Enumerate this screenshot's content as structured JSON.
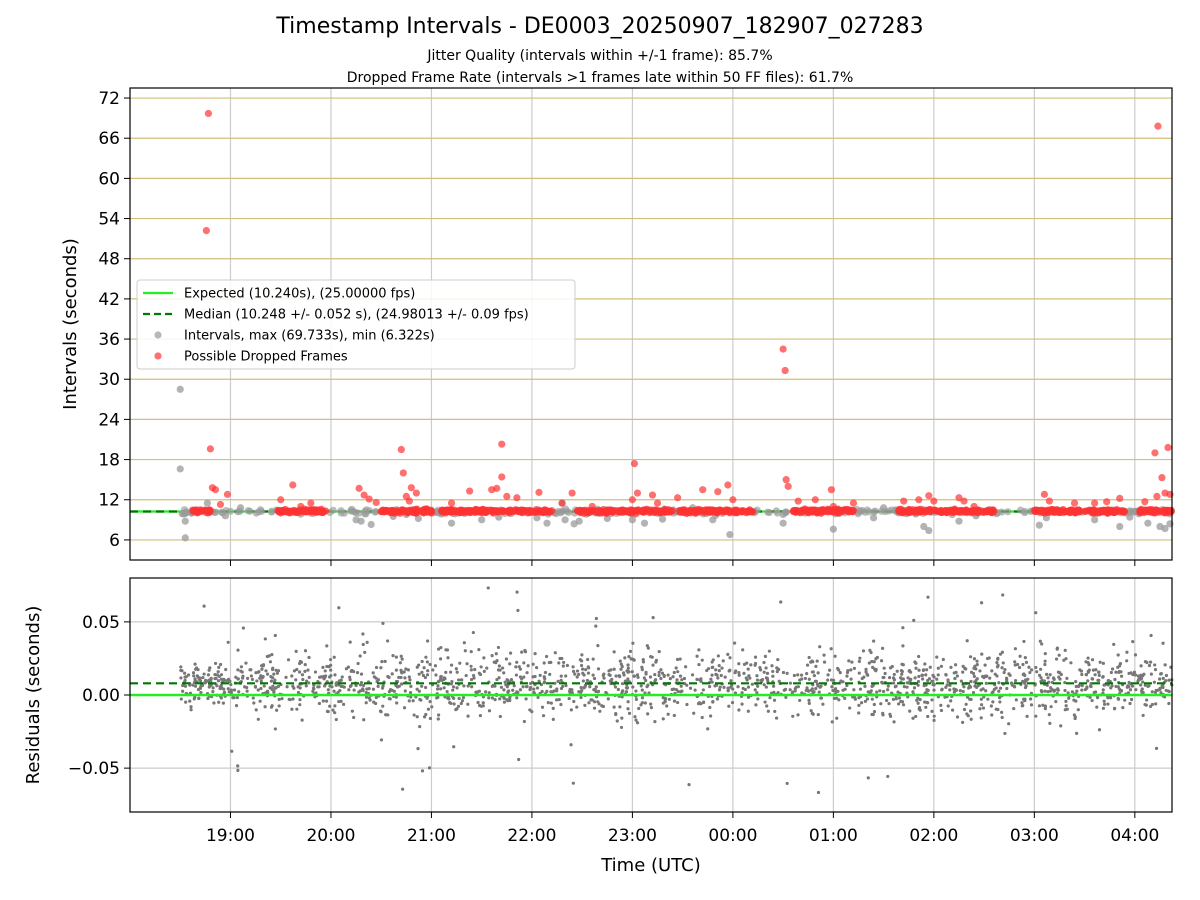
{
  "title": "Timestamp Intervals - DE0003_20250907_182907_027283",
  "subtitle_1": "Jitter Quality (intervals within +/-1 frame): 85.7%",
  "subtitle_2": "Dropped Frame Rate (intervals >1 frames late within 50 FF files): 61.7%",
  "colors": {
    "expected": "#22ee22",
    "median": "#007700",
    "interval_points": "#999999",
    "dropped_points": "#ff3333",
    "residual_points": "#777777",
    "top_grid": "#d2bf78",
    "vertical_grid": "#cccccc"
  },
  "chart_data": [
    {
      "type": "scatter",
      "panel": "intervals",
      "ylabel": "Intervals (seconds)",
      "xlabel": "",
      "x_unit": "hours since 00:00 UTC of Sept 7 (tick labels shown as clock time)",
      "xlim": [
        18.0,
        28.37
      ],
      "ylim": [
        3.0,
        73.5
      ],
      "yticks": [
        6,
        12,
        18,
        24,
        30,
        36,
        42,
        48,
        54,
        60,
        66,
        72
      ],
      "xtick_labels": [
        "19:00",
        "20:00",
        "21:00",
        "22:00",
        "23:00",
        "00:00",
        "01:00",
        "02:00",
        "03:00",
        "04:00"
      ],
      "xtick_values": [
        19,
        20,
        21,
        22,
        23,
        24,
        25,
        26,
        27,
        28
      ],
      "grid": true,
      "legend_placement": "center-left",
      "series": [
        {
          "name": "Expected (10.240s), (25.00000 fps)",
          "kind": "hline",
          "y": 10.24,
          "style": "solid"
        },
        {
          "name": "Median (10.248 +/- 0.052 s), (24.98013 +/- 0.09 fps)",
          "kind": "hline",
          "y": 10.248,
          "style": "dashed"
        },
        {
          "name": "Intervals, max (69.733s), min (6.322s)",
          "kind": "scatter",
          "points": [
            [
              18.5,
              28.5
            ],
            [
              18.5,
              16.6
            ],
            [
              18.55,
              8.8
            ],
            [
              18.55,
              6.3
            ],
            [
              18.77,
              11.5
            ],
            [
              18.95,
              9.6
            ],
            [
              19.1,
              10.8
            ],
            [
              20.25,
              9.0
            ],
            [
              20.3,
              8.8
            ],
            [
              20.4,
              8.3
            ],
            [
              20.62,
              9.5
            ],
            [
              20.75,
              9.8
            ],
            [
              20.87,
              9.2
            ],
            [
              21.2,
              8.5
            ],
            [
              21.5,
              9.0
            ],
            [
              21.67,
              9.4
            ],
            [
              22.05,
              9.3
            ],
            [
              22.15,
              8.5
            ],
            [
              22.3,
              11.5
            ],
            [
              22.33,
              9.0
            ],
            [
              22.42,
              8.4
            ],
            [
              22.47,
              8.8
            ],
            [
              22.75,
              9.2
            ],
            [
              23.0,
              9.0
            ],
            [
              23.12,
              8.5
            ],
            [
              23.3,
              9.1
            ],
            [
              23.6,
              10.8
            ],
            [
              23.8,
              9.0
            ],
            [
              23.97,
              6.8
            ],
            [
              24.5,
              8.5
            ],
            [
              24.5,
              9.8
            ],
            [
              25.0,
              7.6
            ],
            [
              25.4,
              9.3
            ],
            [
              25.5,
              10.8
            ],
            [
              25.9,
              8.0
            ],
            [
              25.95,
              7.4
            ],
            [
              26.25,
              8.8
            ],
            [
              26.42,
              9.6
            ],
            [
              27.05,
              8.2
            ],
            [
              27.12,
              9.3
            ],
            [
              27.6,
              9.0
            ],
            [
              27.85,
              8.0
            ],
            [
              27.95,
              9.4
            ],
            [
              28.13,
              8.5
            ],
            [
              28.25,
              8.0
            ],
            [
              28.3,
              7.7
            ],
            [
              28.35,
              8.4
            ]
          ]
        },
        {
          "name": "Possible Dropped Frames",
          "kind": "scatter",
          "points": [
            [
              18.78,
              69.7
            ],
            [
              18.76,
              52.2
            ],
            [
              18.8,
              19.6
            ],
            [
              18.82,
              13.8
            ],
            [
              18.85,
              13.5
            ],
            [
              18.97,
              12.8
            ],
            [
              18.9,
              11.3
            ],
            [
              19.5,
              12.0
            ],
            [
              19.62,
              14.2
            ],
            [
              19.7,
              11.0
            ],
            [
              19.8,
              11.5
            ],
            [
              20.28,
              13.7
            ],
            [
              20.33,
              12.7
            ],
            [
              20.38,
              12.1
            ],
            [
              20.45,
              11.6
            ],
            [
              20.7,
              19.5
            ],
            [
              20.72,
              16.0
            ],
            [
              20.75,
              12.5
            ],
            [
              20.8,
              13.8
            ],
            [
              20.85,
              13.0
            ],
            [
              20.78,
              11.8
            ],
            [
              21.2,
              11.5
            ],
            [
              21.38,
              13.3
            ],
            [
              21.6,
              13.5
            ],
            [
              21.65,
              13.7
            ],
            [
              21.7,
              15.4
            ],
            [
              21.7,
              20.3
            ],
            [
              21.75,
              12.5
            ],
            [
              21.85,
              12.3
            ],
            [
              22.07,
              13.1
            ],
            [
              22.3,
              11.5
            ],
            [
              22.4,
              13.0
            ],
            [
              22.6,
              11.0
            ],
            [
              23.02,
              17.4
            ],
            [
              23.05,
              13.0
            ],
            [
              23.0,
              12.0
            ],
            [
              23.2,
              12.7
            ],
            [
              23.25,
              11.5
            ],
            [
              23.45,
              12.3
            ],
            [
              23.7,
              13.5
            ],
            [
              23.85,
              13.2
            ],
            [
              23.95,
              14.2
            ],
            [
              24.0,
              12.0
            ],
            [
              24.5,
              34.5
            ],
            [
              24.52,
              31.3
            ],
            [
              24.53,
              15.0
            ],
            [
              24.55,
              14.0
            ],
            [
              24.65,
              11.8
            ],
            [
              24.82,
              12.0
            ],
            [
              24.98,
              13.5
            ],
            [
              25.0,
              11.0
            ],
            [
              25.2,
              11.5
            ],
            [
              25.7,
              11.8
            ],
            [
              25.85,
              12.0
            ],
            [
              25.95,
              12.6
            ],
            [
              26.0,
              11.8
            ],
            [
              26.25,
              12.3
            ],
            [
              26.3,
              11.8
            ],
            [
              26.4,
              11.0
            ],
            [
              27.1,
              12.8
            ],
            [
              27.15,
              11.8
            ],
            [
              27.4,
              11.5
            ],
            [
              27.6,
              11.5
            ],
            [
              27.72,
              11.7
            ],
            [
              27.85,
              12.2
            ],
            [
              28.1,
              11.7
            ],
            [
              28.2,
              19.0
            ],
            [
              28.22,
              12.5
            ],
            [
              28.23,
              67.8
            ],
            [
              28.27,
              15.3
            ],
            [
              28.3,
              13.0
            ],
            [
              28.33,
              19.8
            ],
            [
              28.35,
              12.8
            ]
          ]
        }
      ]
    },
    {
      "type": "scatter",
      "panel": "residuals",
      "ylabel": "Residuals (seconds)",
      "xlabel": "Time (UTC)",
      "xlim": [
        18.0,
        28.37
      ],
      "ylim": [
        -0.08,
        0.08
      ],
      "yticks": [
        -0.05,
        0.0,
        0.05
      ],
      "ytick_labels": [
        "−0.05",
        "0.00",
        "0.05"
      ],
      "xtick_labels": [
        "19:00",
        "20:00",
        "21:00",
        "22:00",
        "23:00",
        "00:00",
        "01:00",
        "02:00",
        "03:00",
        "04:00"
      ],
      "xtick_values": [
        19,
        20,
        21,
        22,
        23,
        24,
        25,
        26,
        27,
        28
      ],
      "grid": true,
      "series": [
        {
          "kind": "hline",
          "y": 0.0,
          "style": "solid"
        },
        {
          "kind": "hline",
          "y": 0.008,
          "style": "dashed"
        },
        {
          "kind": "scatter",
          "x_range": [
            18.5,
            28.37
          ],
          "center": 0.008,
          "spread": 0.016,
          "count": 1900
        }
      ]
    }
  ]
}
